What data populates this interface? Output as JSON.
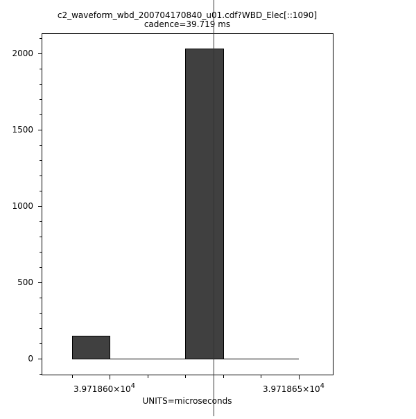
{
  "chart_data": {
    "type": "bar",
    "title": "c2_waveform_wbd_200704170840_u01.cdf?WBD_Elec[::1090]",
    "subtitle": "cadence=39.719 ms",
    "xlabel": "UNITS=microseconds",
    "ylabel": "",
    "bin_edges": [
      39718.59,
      39718.6,
      39718.61,
      39718.62,
      39718.63,
      39718.64,
      39718.65
    ],
    "values": [
      150,
      0,
      0,
      2032,
      0,
      0
    ],
    "xlim": [
      39718.582,
      39718.659
    ],
    "ylim": [
      -104,
      2132
    ],
    "x_major_ticks": [
      {
        "value": 39718.6,
        "mantissa": "3.971860×10",
        "exponent": "4"
      },
      {
        "value": 39718.65,
        "mantissa": "3.971865×10",
        "exponent": "4"
      }
    ],
    "x_minor_ticks": [
      39718.59,
      39718.61,
      39718.62,
      39718.63,
      39718.64
    ],
    "y_major_ticks": [
      0,
      500,
      1000,
      1500,
      2000
    ],
    "y_minor_step": 100,
    "crosshair_x": 39718.6274,
    "grid": false,
    "bar_color": "#404040"
  }
}
